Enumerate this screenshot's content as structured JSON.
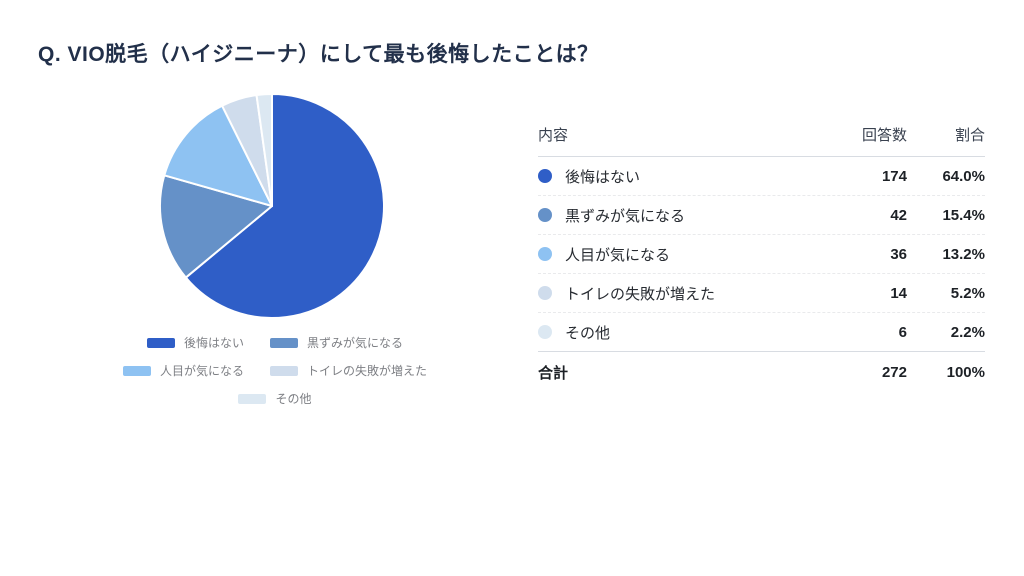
{
  "title": "Q. VIO脱毛（ハイジニーナ）にして最も後悔したことは？",
  "chart_data": {
    "type": "pie",
    "title": "Q. VIO脱毛（ハイジニーナ）にして最も後悔したことは？",
    "categories": [
      "後悔はない",
      "黒ずみが気になる",
      "人目が気になる",
      "トイレの失敗が増えた",
      "その他"
    ],
    "values": [
      174,
      42,
      36,
      14,
      6
    ],
    "percent_labels": [
      "64.0%",
      "15.4%",
      "13.2%",
      "5.2%",
      "2.2%"
    ],
    "colors": [
      "#2f5ec7",
      "#6591c8",
      "#8ec2f2",
      "#cfdcec",
      "#dce8f2"
    ],
    "total": 272,
    "start_angle_deg": 0,
    "direction": "clockwise",
    "legend_position": "bottom",
    "slice_border_color": "#ffffff"
  },
  "legend_layout": [
    [
      0,
      1
    ],
    [
      2,
      3
    ],
    [
      4
    ]
  ],
  "table": {
    "headers": {
      "content": "内容",
      "count": "回答数",
      "ratio": "割合"
    },
    "rows": [
      {
        "label": "後悔はない",
        "count": "174",
        "ratio": "64.0%",
        "color": "#2f5ec7"
      },
      {
        "label": "黒ずみが気になる",
        "count": "42",
        "ratio": "15.4%",
        "color": "#6591c8"
      },
      {
        "label": "人目が気になる",
        "count": "36",
        "ratio": "13.2%",
        "color": "#8ec2f2"
      },
      {
        "label": "トイレの失敗が増えた",
        "count": "14",
        "ratio": "5.2%",
        "color": "#cfdcec"
      },
      {
        "label": "その他",
        "count": "6",
        "ratio": "2.2%",
        "color": "#dce8f2"
      }
    ],
    "total_row": {
      "label": "合計",
      "count": "272",
      "ratio": "100%"
    }
  }
}
